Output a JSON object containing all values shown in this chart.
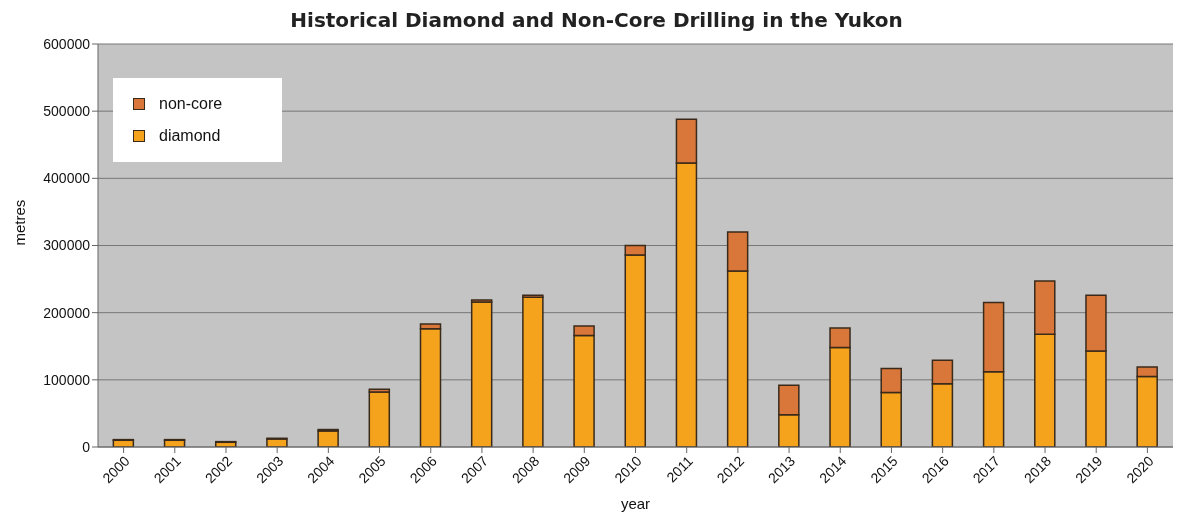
{
  "chart_data": {
    "type": "bar",
    "title": "Historical Diamond and Non-Core Drilling in the Yukon",
    "xlabel": "year",
    "ylabel": "metres",
    "categories": [
      "2000",
      "2001",
      "2002",
      "2003",
      "2004",
      "2005",
      "2006",
      "2007",
      "2008",
      "2009",
      "2010",
      "2011",
      "2012",
      "2013",
      "2014",
      "2015",
      "2016",
      "2017",
      "2018",
      "2019",
      "2020"
    ],
    "series": [
      {
        "name": "diamond",
        "color": "#f5a21c",
        "values": [
          10000,
          10000,
          7000,
          12000,
          24000,
          82000,
          176000,
          216000,
          223000,
          166000,
          286000,
          423000,
          262000,
          48000,
          148000,
          81000,
          94000,
          112000,
          168000,
          143000,
          105000
        ]
      },
      {
        "name": "non-core",
        "color": "#d9773a",
        "values": [
          1000,
          1000,
          1000,
          1000,
          2000,
          4000,
          7000,
          3000,
          3000,
          14000,
          14000,
          65000,
          58000,
          44000,
          29000,
          36000,
          35000,
          103000,
          79000,
          83000,
          14000
        ]
      }
    ],
    "stacked": true,
    "ylim": [
      0,
      600000
    ],
    "yticks": [
      0,
      100000,
      200000,
      300000,
      400000,
      500000,
      600000
    ],
    "grid": "y",
    "legend": "top left"
  }
}
